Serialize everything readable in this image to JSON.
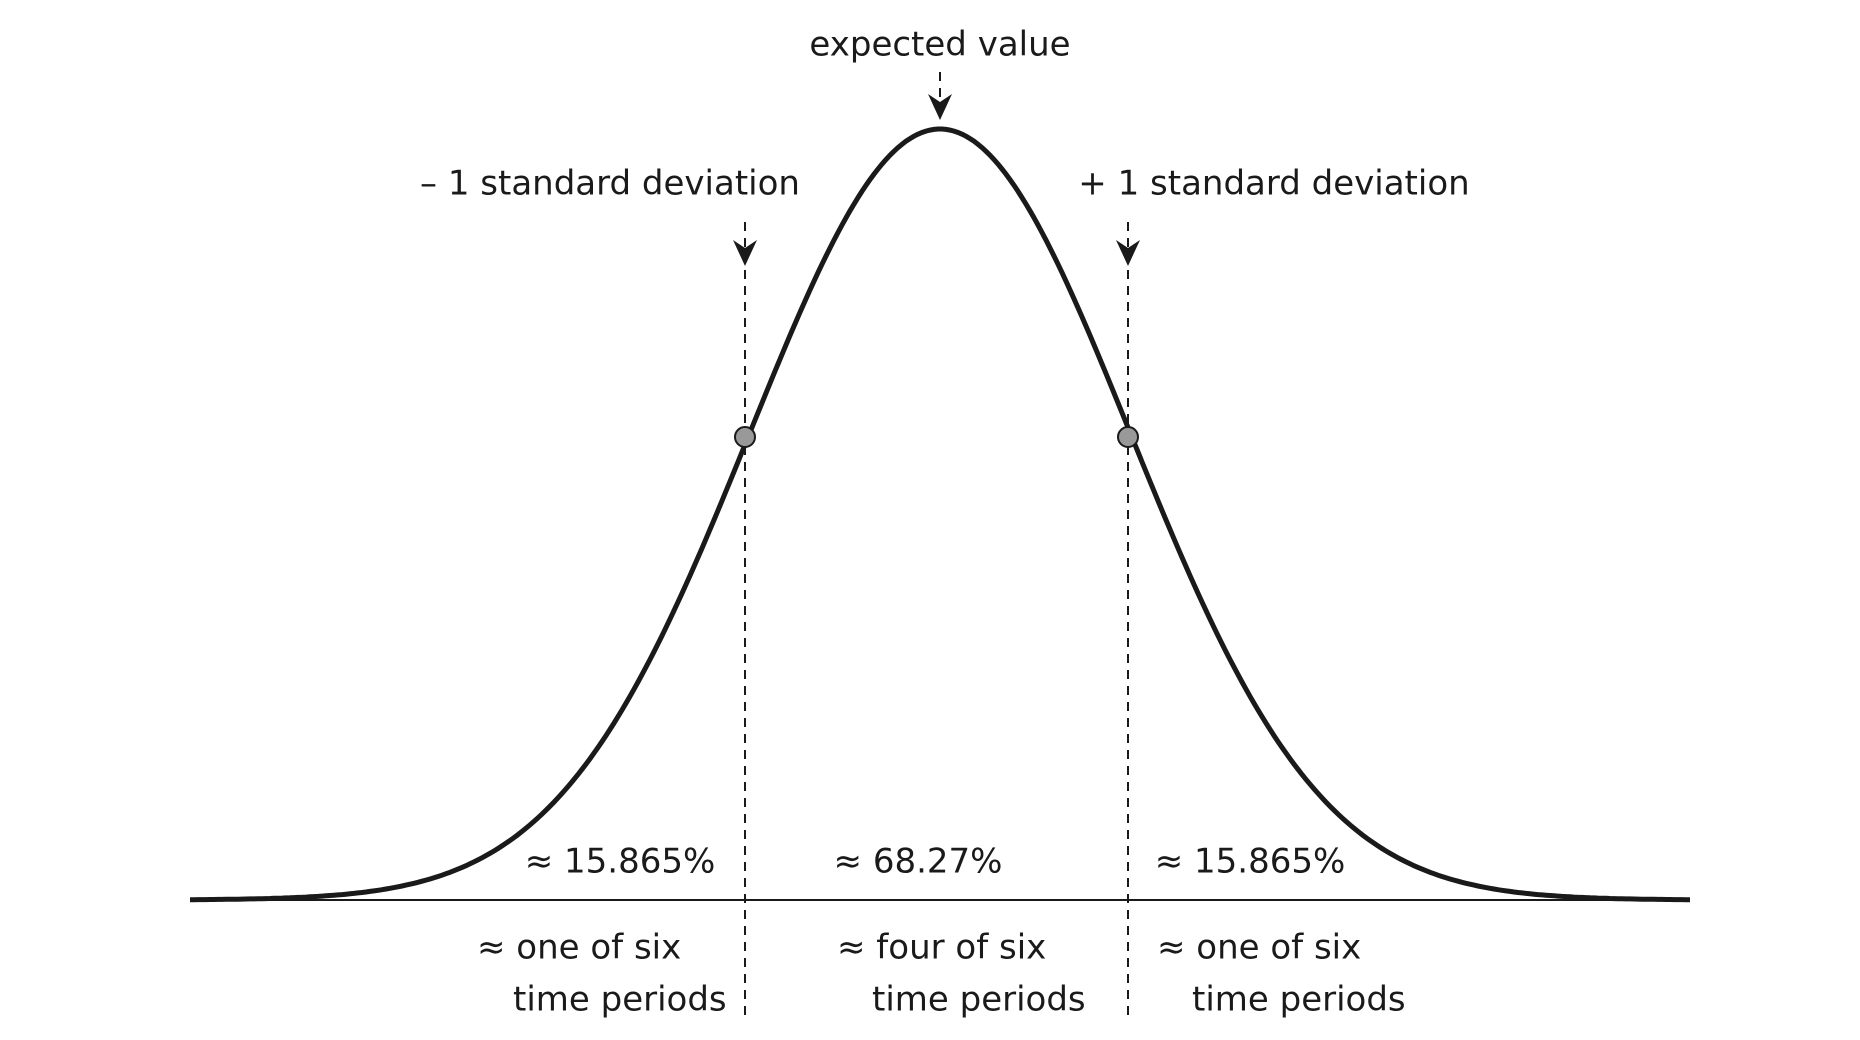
{
  "annotations": {
    "expected_value": "expected value",
    "minus_sd": "– 1 standard deviation",
    "plus_sd": "+ 1 standard deviation"
  },
  "regions": [
    {
      "share": "≈ 15.865%",
      "periods": [
        "≈ one of six",
        "time periods"
      ]
    },
    {
      "share": "≈ 68.27%",
      "periods": [
        "≈ four of six",
        "time periods"
      ]
    },
    {
      "share": "≈ 15.865%",
      "periods": [
        "≈ one of six",
        "time periods"
      ]
    }
  ]
}
